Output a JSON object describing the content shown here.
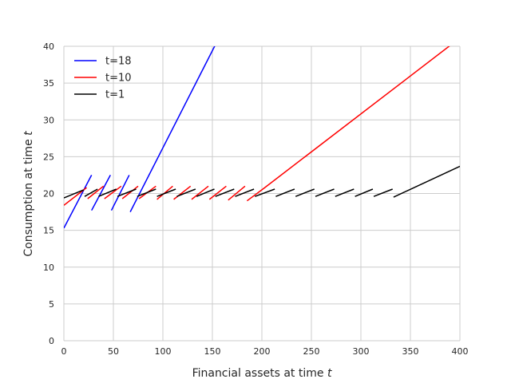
{
  "chart_data": {
    "type": "line",
    "xlabel": "Financial assets at time t",
    "ylabel": "Consumption at time t",
    "xlim": [
      0,
      400
    ],
    "ylim": [
      0,
      40
    ],
    "xticks": [
      0,
      50,
      100,
      150,
      200,
      250,
      300,
      350,
      400
    ],
    "yticks": [
      0,
      5,
      10,
      15,
      20,
      25,
      30,
      35,
      40
    ],
    "grid": true,
    "legend_position": "top-left",
    "series": [
      {
        "name": "t=18",
        "color": "#0000ff",
        "segments": [
          [
            [
              0,
              15.3
            ],
            [
              28,
              22.5
            ]
          ],
          [
            [
              28,
              17.7
            ],
            [
              47,
              22.5
            ]
          ],
          [
            [
              48,
              17.7
            ],
            [
              66,
              22.5
            ]
          ],
          [
            [
              67,
              17.5
            ],
            [
              153,
              40.2
            ]
          ]
        ]
      },
      {
        "name": "t=10",
        "color": "#ff0000",
        "segments": [
          [
            [
              0,
              18.4
            ],
            [
              23,
              20.8
            ]
          ],
          [
            [
              24,
              19.3
            ],
            [
              40,
              21.0
            ]
          ],
          [
            [
              41,
              19.3
            ],
            [
              58,
              21.0
            ]
          ],
          [
            [
              59,
              19.3
            ],
            [
              75,
              21.0
            ]
          ],
          [
            [
              76,
              19.3
            ],
            [
              93,
              21.0
            ]
          ],
          [
            [
              94,
              19.2
            ],
            [
              110,
              21.0
            ]
          ],
          [
            [
              111,
              19.2
            ],
            [
              128,
              21.0
            ]
          ],
          [
            [
              129,
              19.2
            ],
            [
              146,
              21.0
            ]
          ],
          [
            [
              147,
              19.2
            ],
            [
              164,
              21.0
            ]
          ],
          [
            [
              166,
              19.1
            ],
            [
              183,
              21.0
            ]
          ],
          [
            [
              185,
              19.0
            ],
            [
              202,
              20.7
            ],
            [
              392,
              40.3
            ]
          ]
        ]
      },
      {
        "name": "t=1",
        "color": "#000000",
        "segments": [
          [
            [
              0,
              19.4
            ],
            [
              20,
              20.5
            ]
          ],
          [
            [
              21,
              19.6
            ],
            [
              34,
              20.6
            ]
          ],
          [
            [
              35,
              19.6
            ],
            [
              53,
              20.6
            ]
          ],
          [
            [
              54,
              19.6
            ],
            [
              73,
              20.6
            ]
          ],
          [
            [
              74,
              19.6
            ],
            [
              93,
              20.6
            ]
          ],
          [
            [
              94,
              19.6
            ],
            [
              113,
              20.6
            ]
          ],
          [
            [
              114,
              19.6
            ],
            [
              133,
              20.6
            ]
          ],
          [
            [
              134,
              19.6
            ],
            [
              152,
              20.6
            ]
          ],
          [
            [
              153,
              19.6
            ],
            [
              172,
              20.6
            ]
          ],
          [
            [
              173,
              19.6
            ],
            [
              192,
              20.6
            ]
          ],
          [
            [
              193,
              19.6
            ],
            [
              213,
              20.6
            ]
          ],
          [
            [
              214,
              19.6
            ],
            [
              233,
              20.6
            ]
          ],
          [
            [
              234,
              19.6
            ],
            [
              253,
              20.6
            ]
          ],
          [
            [
              254,
              19.6
            ],
            [
              273,
              20.6
            ]
          ],
          [
            [
              274,
              19.6
            ],
            [
              293,
              20.6
            ]
          ],
          [
            [
              294,
              19.6
            ],
            [
              312,
              20.6
            ]
          ],
          [
            [
              313,
              19.6
            ],
            [
              332,
              20.6
            ]
          ],
          [
            [
              333,
              19.5
            ],
            [
              400,
              23.7
            ]
          ]
        ]
      }
    ]
  }
}
